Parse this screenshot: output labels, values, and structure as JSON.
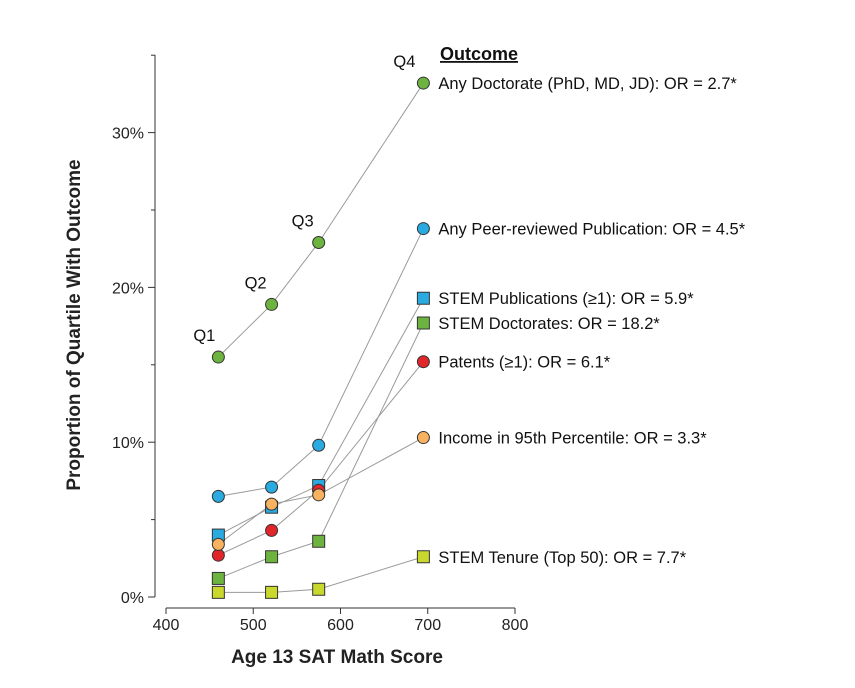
{
  "chart_data": {
    "type": "line",
    "xlabel": "Age 13 SAT Math Score",
    "ylabel": "Proportion of Quartile With Outcome",
    "xlim": [
      400,
      800
    ],
    "ylim": [
      0,
      35
    ],
    "x_ticks": [
      400,
      500,
      600,
      700,
      800
    ],
    "y_ticks": [
      0,
      10,
      20,
      30
    ],
    "y_tick_labels": [
      "0%",
      "10%",
      "20%",
      "30%"
    ],
    "legend_title": "Outcome",
    "quartile_x": [
      460,
      521,
      575,
      695
    ],
    "quartile_labels": [
      "Q1",
      "Q2",
      "Q3",
      "Q4"
    ],
    "series": [
      {
        "name": "Any Doctorate  (PhD, MD, JD): OR = 2.7*",
        "marker": "circle",
        "color": "#6db33f",
        "values": [
          15.5,
          18.9,
          22.9,
          33.2
        ]
      },
      {
        "name": "Any Peer-reviewed Publication: OR = 4.5*",
        "marker": "circle",
        "color": "#29abe2",
        "values": [
          6.5,
          7.1,
          9.8,
          23.8
        ]
      },
      {
        "name": "STEM Publications (≥1): OR = 5.9*",
        "marker": "square",
        "color": "#29abe2",
        "values": [
          4.0,
          5.8,
          7.2,
          19.3
        ]
      },
      {
        "name": "STEM Doctorates: OR = 18.2*",
        "marker": "square",
        "color": "#6db33f",
        "values": [
          1.2,
          2.6,
          3.6,
          17.7
        ]
      },
      {
        "name": "Patents (≥1): OR = 6.1*",
        "marker": "circle",
        "color": "#e0252b",
        "values": [
          2.7,
          4.3,
          6.9,
          15.2
        ]
      },
      {
        "name": "Income in 95th Percentile: OR = 3.3*",
        "marker": "circle",
        "color": "#f9b25f",
        "values": [
          3.4,
          6.0,
          6.6,
          10.3
        ]
      },
      {
        "name": "STEM Tenure (Top 50): OR = 7.7*",
        "marker": "square",
        "color": "#c8d82c",
        "values": [
          0.3,
          0.3,
          0.5,
          2.6
        ]
      }
    ]
  }
}
